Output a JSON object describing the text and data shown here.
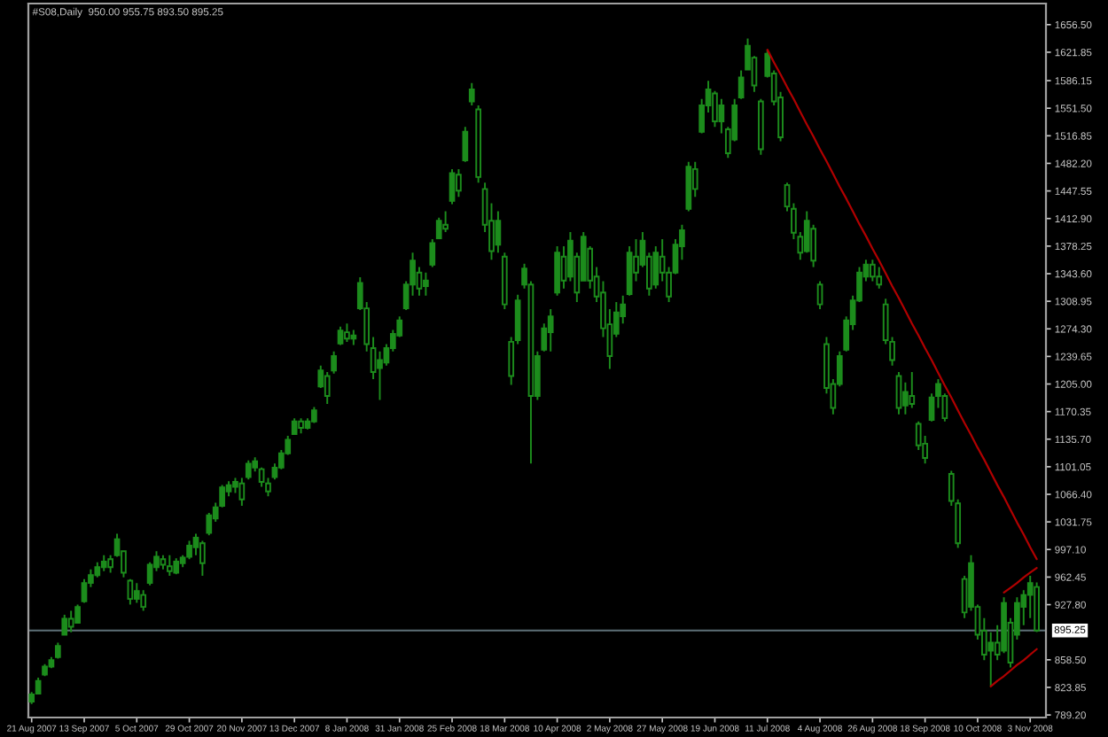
{
  "chart_data": {
    "type": "candlestick",
    "title": "#S08,Daily  950.00 955.75 893.50 895.25",
    "color": "#1c8c1c",
    "categories": [
      "21 Aug 2007",
      null,
      null,
      null,
      null,
      null,
      null,
      null,
      "13 Sep 2007",
      null,
      null,
      null,
      null,
      null,
      null,
      null,
      "5 Oct 2007",
      null,
      null,
      null,
      null,
      null,
      null,
      null,
      "29 Oct 2007",
      null,
      null,
      null,
      null,
      null,
      null,
      null,
      "20 Nov 2007",
      null,
      null,
      null,
      null,
      null,
      null,
      null,
      "13 Dec 2007",
      null,
      null,
      null,
      null,
      null,
      null,
      null,
      "8 Jan 2008",
      null,
      null,
      null,
      null,
      null,
      null,
      null,
      "31 Jan 2008",
      null,
      null,
      null,
      null,
      null,
      null,
      null,
      "25 Feb 2008",
      null,
      null,
      null,
      null,
      null,
      null,
      null,
      "18 Mar 2008",
      null,
      null,
      null,
      null,
      null,
      null,
      null,
      "10 Apr 2008",
      null,
      null,
      null,
      null,
      null,
      null,
      null,
      "2 May 2008",
      null,
      null,
      null,
      null,
      null,
      null,
      null,
      "27 May 2008",
      null,
      null,
      null,
      null,
      null,
      null,
      null,
      "19 Jun 2008",
      null,
      null,
      null,
      null,
      null,
      null,
      null,
      "11 Jul 2008",
      null,
      null,
      null,
      null,
      null,
      null,
      null,
      "4 Aug 2008",
      null,
      null,
      null,
      null,
      null,
      null,
      null,
      "26 Aug 2008",
      null,
      null,
      null,
      null,
      null,
      null,
      null,
      "18 Sep 2008",
      null,
      null,
      null,
      null,
      null,
      null,
      null,
      "10 Oct 2008",
      null,
      null,
      null,
      null,
      null,
      null,
      null,
      "3 Nov 2008",
      null
    ],
    "ohlc": [
      [
        806,
        818,
        803,
        815
      ],
      [
        816,
        836,
        815,
        832
      ],
      [
        840,
        853,
        838,
        850
      ],
      [
        850,
        862,
        848,
        858
      ],
      [
        862,
        880,
        860,
        876
      ],
      [
        890,
        915,
        889,
        910
      ],
      [
        910,
        920,
        893,
        900
      ],
      [
        905,
        928,
        905,
        925
      ],
      [
        932,
        960,
        930,
        955
      ],
      [
        955,
        972,
        950,
        965
      ],
      [
        965,
        981,
        962,
        975
      ],
      [
        975,
        990,
        970,
        982
      ],
      [
        985,
        990,
        968,
        975
      ],
      [
        990,
        1017,
        988,
        1010
      ],
      [
        995,
        995,
        962,
        968
      ],
      [
        958,
        960,
        928,
        935
      ],
      [
        935,
        955,
        930,
        945
      ],
      [
        940,
        946,
        920,
        925
      ],
      [
        955,
        981,
        952,
        978
      ],
      [
        975,
        995,
        970,
        988
      ],
      [
        985,
        990,
        972,
        978
      ],
      [
        976,
        990,
        964,
        970
      ],
      [
        968,
        986,
        966,
        982
      ],
      [
        980,
        990,
        975,
        987
      ],
      [
        988,
        1008,
        985,
        1002
      ],
      [
        1000,
        1017,
        990,
        1012
      ],
      [
        1005,
        1008,
        964,
        980
      ],
      [
        1018,
        1043,
        1015,
        1040
      ],
      [
        1036,
        1056,
        1032,
        1050
      ],
      [
        1052,
        1078,
        1050,
        1075
      ],
      [
        1070,
        1083,
        1064,
        1078
      ],
      [
        1076,
        1087,
        1068,
        1082
      ],
      [
        1080,
        1087,
        1052,
        1060
      ],
      [
        1088,
        1109,
        1085,
        1105
      ],
      [
        1100,
        1113,
        1095,
        1108
      ],
      [
        1098,
        1100,
        1076,
        1082
      ],
      [
        1080,
        1087,
        1064,
        1070
      ],
      [
        1088,
        1105,
        1085,
        1100
      ],
      [
        1100,
        1122,
        1098,
        1118
      ],
      [
        1118,
        1140,
        1116,
        1135
      ],
      [
        1142,
        1162,
        1142,
        1158
      ],
      [
        1158,
        1162,
        1143,
        1150
      ],
      [
        1150,
        1162,
        1148,
        1158
      ],
      [
        1158,
        1176,
        1156,
        1172
      ],
      [
        1202,
        1228,
        1200,
        1222
      ],
      [
        1215,
        1220,
        1180,
        1190
      ],
      [
        1222,
        1246,
        1218,
        1240
      ],
      [
        1256,
        1277,
        1254,
        1272
      ],
      [
        1270,
        1281,
        1258,
        1262
      ],
      [
        1262,
        1273,
        1254,
        1266
      ],
      [
        1300,
        1339,
        1298,
        1332
      ],
      [
        1300,
        1308,
        1246,
        1255
      ],
      [
        1250,
        1264,
        1211,
        1220
      ],
      [
        1225,
        1246,
        1185,
        1235
      ],
      [
        1232,
        1255,
        1228,
        1250
      ],
      [
        1250,
        1273,
        1246,
        1268
      ],
      [
        1266,
        1290,
        1264,
        1285
      ],
      [
        1300,
        1334,
        1298,
        1330
      ],
      [
        1330,
        1370,
        1316,
        1360
      ],
      [
        1345,
        1352,
        1316,
        1325
      ],
      [
        1328,
        1345,
        1316,
        1335
      ],
      [
        1355,
        1387,
        1352,
        1382
      ],
      [
        1388,
        1414,
        1387,
        1410
      ],
      [
        1405,
        1422,
        1396,
        1400
      ],
      [
        1435,
        1475,
        1431,
        1470
      ],
      [
        1468,
        1475,
        1440,
        1448
      ],
      [
        1486,
        1528,
        1484,
        1522
      ],
      [
        1560,
        1583,
        1555,
        1575
      ],
      [
        1550,
        1555,
        1458,
        1465
      ],
      [
        1450,
        1458,
        1396,
        1405
      ],
      [
        1410,
        1432,
        1361,
        1372
      ],
      [
        1380,
        1422,
        1370,
        1410
      ],
      [
        1365,
        1370,
        1299,
        1305
      ],
      [
        1258,
        1264,
        1204,
        1215
      ],
      [
        1260,
        1317,
        1255,
        1310
      ],
      [
        1330,
        1356,
        1325,
        1350
      ],
      [
        1330,
        1334,
        1105,
        1190
      ],
      [
        1190,
        1246,
        1185,
        1240
      ],
      [
        1248,
        1281,
        1246,
        1275
      ],
      [
        1270,
        1299,
        1246,
        1290
      ],
      [
        1320,
        1378,
        1316,
        1370
      ],
      [
        1365,
        1378,
        1325,
        1335
      ],
      [
        1340,
        1396,
        1334,
        1385
      ],
      [
        1365,
        1370,
        1308,
        1320
      ],
      [
        1335,
        1396,
        1334,
        1390
      ],
      [
        1375,
        1378,
        1325,
        1335
      ],
      [
        1340,
        1352,
        1308,
        1315
      ],
      [
        1320,
        1334,
        1264,
        1275
      ],
      [
        1280,
        1299,
        1224,
        1240
      ],
      [
        1268,
        1308,
        1264,
        1295
      ],
      [
        1290,
        1316,
        1281,
        1305
      ],
      [
        1318,
        1378,
        1316,
        1370
      ],
      [
        1365,
        1387,
        1334,
        1345
      ],
      [
        1355,
        1396,
        1352,
        1385
      ],
      [
        1365,
        1370,
        1316,
        1325
      ],
      [
        1330,
        1378,
        1325,
        1370
      ],
      [
        1365,
        1387,
        1334,
        1345
      ],
      [
        1345,
        1352,
        1308,
        1315
      ],
      [
        1345,
        1387,
        1343,
        1380
      ],
      [
        1378,
        1405,
        1361,
        1398
      ],
      [
        1425,
        1484,
        1422,
        1478
      ],
      [
        1475,
        1484,
        1440,
        1450
      ],
      [
        1522,
        1563,
        1520,
        1555
      ],
      [
        1555,
        1586,
        1546,
        1575
      ],
      [
        1570,
        1573,
        1528,
        1535
      ],
      [
        1535,
        1563,
        1520,
        1555
      ],
      [
        1525,
        1528,
        1489,
        1495
      ],
      [
        1512,
        1563,
        1510,
        1555
      ],
      [
        1565,
        1599,
        1563,
        1590
      ],
      [
        1600,
        1639,
        1599,
        1630
      ],
      [
        1615,
        1617,
        1572,
        1580
      ],
      [
        1560,
        1563,
        1493,
        1500
      ],
      [
        1592,
        1625,
        1590,
        1620
      ],
      [
        1595,
        1599,
        1555,
        1560
      ],
      [
        1565,
        1572,
        1510,
        1515
      ],
      [
        1455,
        1458,
        1422,
        1428
      ],
      [
        1425,
        1432,
        1387,
        1395
      ],
      [
        1390,
        1396,
        1361,
        1370
      ],
      [
        1372,
        1422,
        1370,
        1410
      ],
      [
        1400,
        1405,
        1352,
        1360
      ],
      [
        1330,
        1334,
        1299,
        1305
      ],
      [
        1255,
        1264,
        1193,
        1200
      ],
      [
        1205,
        1211,
        1167,
        1175
      ],
      [
        1205,
        1246,
        1202,
        1240
      ],
      [
        1248,
        1290,
        1246,
        1285
      ],
      [
        1280,
        1316,
        1273,
        1310
      ],
      [
        1310,
        1352,
        1308,
        1345
      ],
      [
        1340,
        1361,
        1334,
        1355
      ],
      [
        1355,
        1361,
        1334,
        1340
      ],
      [
        1340,
        1352,
        1325,
        1330
      ],
      [
        1305,
        1312,
        1255,
        1260
      ],
      [
        1258,
        1264,
        1228,
        1235
      ],
      [
        1215,
        1220,
        1167,
        1175
      ],
      [
        1178,
        1207,
        1167,
        1195
      ],
      [
        1190,
        1220,
        1175,
        1180
      ],
      [
        1155,
        1158,
        1122,
        1128
      ],
      [
        1130,
        1140,
        1105,
        1112
      ],
      [
        1160,
        1193,
        1158,
        1188
      ],
      [
        1190,
        1211,
        1175,
        1205
      ],
      [
        1190,
        1193,
        1158,
        1162
      ],
      [
        1092,
        1096,
        1052,
        1058
      ],
      [
        1055,
        1060,
        999,
        1005
      ],
      [
        960,
        964,
        911,
        918
      ],
      [
        925,
        990,
        920,
        980
      ],
      [
        925,
        928,
        884,
        890
      ],
      [
        895,
        911,
        858,
        865
      ],
      [
        870,
        893,
        825,
        880
      ],
      [
        880,
        902,
        858,
        865
      ],
      [
        870,
        937,
        867,
        930
      ],
      [
        905,
        911,
        849,
        855
      ],
      [
        890,
        937,
        884,
        930
      ],
      [
        925,
        946,
        902,
        940
      ],
      [
        940,
        964,
        911,
        955
      ],
      [
        950,
        955.75,
        893.5,
        895.25
      ]
    ],
    "series": [
      {
        "type": "line",
        "color": "#b00000",
        "values": [
          null,
          null,
          null,
          null,
          null,
          null,
          null,
          null,
          null,
          null,
          null,
          null,
          null,
          null,
          null,
          null,
          null,
          null,
          null,
          null,
          null,
          null,
          null,
          null,
          null,
          null,
          null,
          null,
          null,
          null,
          null,
          null,
          null,
          null,
          null,
          null,
          null,
          null,
          null,
          null,
          null,
          null,
          null,
          null,
          null,
          null,
          null,
          null,
          null,
          null,
          null,
          null,
          null,
          null,
          null,
          null,
          null,
          null,
          null,
          null,
          null,
          null,
          null,
          null,
          null,
          null,
          null,
          null,
          null,
          null,
          null,
          null,
          null,
          null,
          null,
          null,
          null,
          null,
          null,
          null,
          null,
          null,
          null,
          null,
          null,
          null,
          null,
          null,
          null,
          null,
          null,
          null,
          null,
          null,
          null,
          null,
          null,
          null,
          null,
          null,
          null,
          null,
          null,
          null,
          null,
          null,
          null,
          null,
          null,
          null,
          null,
          null,
          1625,
          1609,
          1594,
          1578,
          1563,
          1547,
          1531,
          1516,
          1500,
          1485,
          1469,
          1453,
          1438,
          1422,
          1406,
          1391,
          1375,
          1360,
          1344,
          1328,
          1313,
          1297,
          1281,
          1266,
          1250,
          1235,
          1219,
          1203,
          1188,
          1172,
          1156,
          1141,
          1125,
          1110,
          1094,
          1078,
          1063,
          1047,
          1031,
          1016,
          1000,
          985
        ]
      },
      {
        "type": "line",
        "color": "#b00000",
        "values": [
          null,
          null,
          null,
          null,
          null,
          null,
          null,
          null,
          null,
          null,
          null,
          null,
          null,
          null,
          null,
          null,
          null,
          null,
          null,
          null,
          null,
          null,
          null,
          null,
          null,
          null,
          null,
          null,
          null,
          null,
          null,
          null,
          null,
          null,
          null,
          null,
          null,
          null,
          null,
          null,
          null,
          null,
          null,
          null,
          null,
          null,
          null,
          null,
          null,
          null,
          null,
          null,
          null,
          null,
          null,
          null,
          null,
          null,
          null,
          null,
          null,
          null,
          null,
          null,
          null,
          null,
          null,
          null,
          null,
          null,
          null,
          null,
          null,
          null,
          null,
          null,
          null,
          null,
          null,
          null,
          null,
          null,
          null,
          null,
          null,
          null,
          null,
          null,
          null,
          null,
          null,
          null,
          null,
          null,
          null,
          null,
          null,
          null,
          null,
          null,
          null,
          null,
          null,
          null,
          null,
          null,
          null,
          null,
          null,
          null,
          null,
          null,
          null,
          null,
          null,
          null,
          null,
          null,
          null,
          null,
          null,
          null,
          null,
          null,
          null,
          null,
          null,
          null,
          null,
          null,
          null,
          null,
          null,
          null,
          null,
          null,
          null,
          null,
          null,
          null,
          null,
          null,
          null,
          null,
          null,
          null,
          825,
          832,
          838,
          845,
          852,
          858,
          865,
          872
        ]
      },
      {
        "type": "line",
        "color": "#b00000",
        "values": [
          null,
          null,
          null,
          null,
          null,
          null,
          null,
          null,
          null,
          null,
          null,
          null,
          null,
          null,
          null,
          null,
          null,
          null,
          null,
          null,
          null,
          null,
          null,
          null,
          null,
          null,
          null,
          null,
          null,
          null,
          null,
          null,
          null,
          null,
          null,
          null,
          null,
          null,
          null,
          null,
          null,
          null,
          null,
          null,
          null,
          null,
          null,
          null,
          null,
          null,
          null,
          null,
          null,
          null,
          null,
          null,
          null,
          null,
          null,
          null,
          null,
          null,
          null,
          null,
          null,
          null,
          null,
          null,
          null,
          null,
          null,
          null,
          null,
          null,
          null,
          null,
          null,
          null,
          null,
          null,
          null,
          null,
          null,
          null,
          null,
          null,
          null,
          null,
          null,
          null,
          null,
          null,
          null,
          null,
          null,
          null,
          null,
          null,
          null,
          null,
          null,
          null,
          null,
          null,
          null,
          null,
          null,
          null,
          null,
          null,
          null,
          null,
          null,
          null,
          null,
          null,
          null,
          null,
          null,
          null,
          null,
          null,
          null,
          null,
          null,
          null,
          null,
          null,
          null,
          null,
          null,
          null,
          null,
          null,
          null,
          null,
          null,
          null,
          null,
          null,
          null,
          null,
          null,
          null,
          null,
          null,
          null,
          null,
          943,
          949,
          955,
          962,
          968,
          974
        ]
      }
    ],
    "ref_lines": [
      {
        "axis": "y",
        "value": 895.25,
        "label": "895.25",
        "color": "#5e7078"
      }
    ],
    "ylim": [
      786,
      1683
    ],
    "yticks": [
      {
        "value": 1656.5,
        "label": "1656.50"
      },
      {
        "value": 1621.85,
        "label": "1621.85"
      },
      {
        "value": 1586.15,
        "label": "1586.15"
      },
      {
        "value": 1551.5,
        "label": "1551.50"
      },
      {
        "value": 1516.85,
        "label": "1516.85"
      },
      {
        "value": 1482.2,
        "label": "1482.20"
      },
      {
        "value": 1447.55,
        "label": "1447.55"
      },
      {
        "value": 1412.9,
        "label": "1412.90"
      },
      {
        "value": 1378.25,
        "label": "1378.25"
      },
      {
        "value": 1343.6,
        "label": "1343.60"
      },
      {
        "value": 1308.95,
        "label": "1308.95"
      },
      {
        "value": 1274.3,
        "label": "1274.30"
      },
      {
        "value": 1239.65,
        "label": "1239.65"
      },
      {
        "value": 1205,
        "label": "1205.00"
      },
      {
        "value": 1170.35,
        "label": "1170.35"
      },
      {
        "value": 1135.7,
        "label": "1135.70"
      },
      {
        "value": 1101.05,
        "label": "1101.05"
      },
      {
        "value": 1066.4,
        "label": "1066.40"
      },
      {
        "value": 1031.75,
        "label": "1031.75"
      },
      {
        "value": 997.1,
        "label": "997.10"
      },
      {
        "value": 962.45,
        "label": "962.45"
      },
      {
        "value": 927.8,
        "label": "927.80"
      },
      {
        "value": 858.5,
        "label": "858.50"
      },
      {
        "value": 823.85,
        "label": "823.85"
      },
      {
        "value": 789.2,
        "label": "789.20"
      }
    ]
  }
}
